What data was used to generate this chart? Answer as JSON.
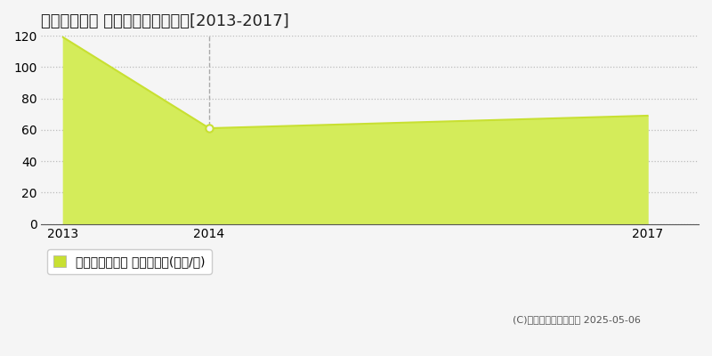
{
  "title": "日立市多賀町 マンション価格推移[2013-2017]",
  "x_values": [
    2013,
    2014,
    2017
  ],
  "y_values": [
    119,
    61,
    69
  ],
  "line_color": "#c8e032",
  "fill_color": "#d4ec5a",
  "fill_alpha": 1.0,
  "marker_color": "#c8e032",
  "ylim": [
    0,
    120
  ],
  "xlim_left": 2012.85,
  "xlim_right": 2017.35,
  "yticks": [
    0,
    20,
    40,
    60,
    80,
    100,
    120
  ],
  "xticks": [
    2013,
    2014,
    2017
  ],
  "grid_color": "#bbbbbb",
  "bg_color": "#f5f5f5",
  "plot_bg_color": "#f5f5f5",
  "vline_x": 2014,
  "vline_color": "#aaaaaa",
  "legend_label": "マンション価格 平均坪単価(万円/坪)",
  "copyright_text": "(C)土地価格ドットコム 2025-05-06",
  "title_fontsize": 13,
  "tick_fontsize": 10,
  "legend_fontsize": 10,
  "copyright_fontsize": 8
}
